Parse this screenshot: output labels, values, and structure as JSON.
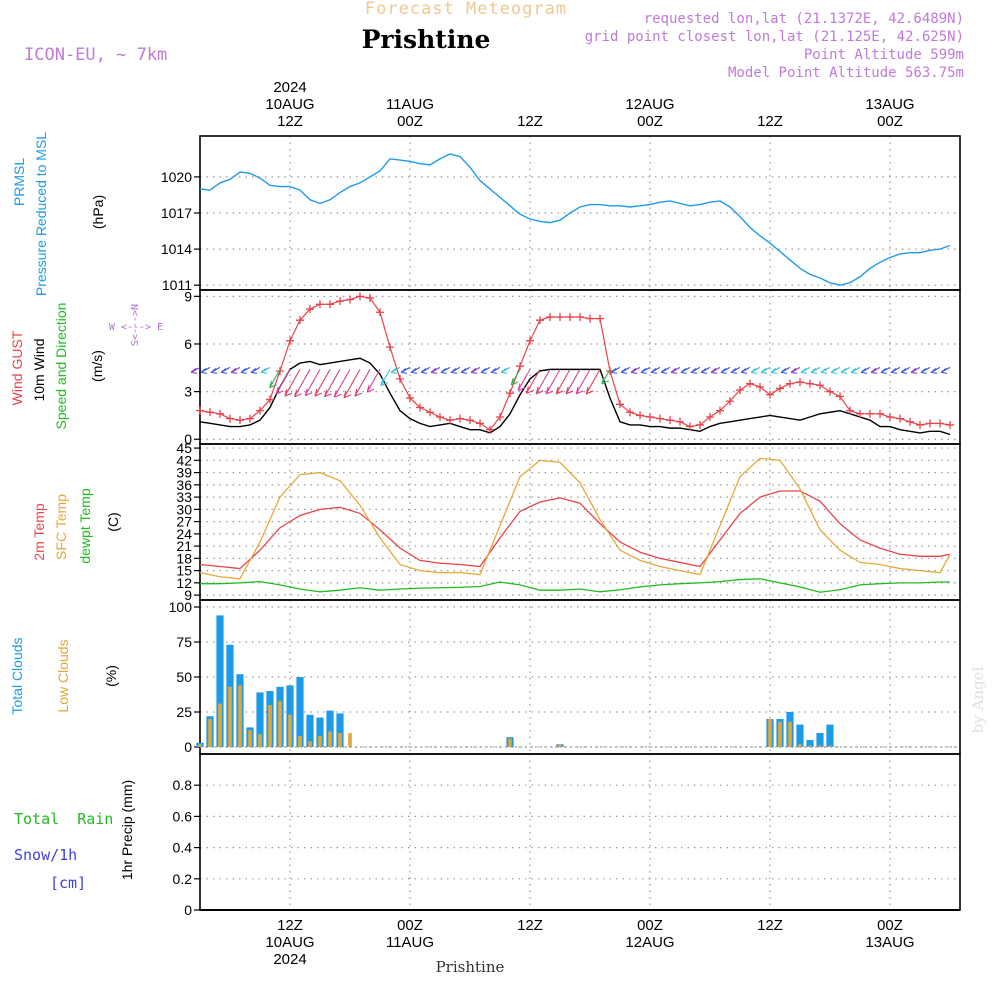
{
  "header": {
    "top_title": "Forecast Meteogram",
    "place": "Prishtine",
    "model": "ICON-EU, ~ 7km",
    "requested": "requested lon,lat (21.1372E, 42.6489N)",
    "grid_point": "grid point closest lon,lat (21.125E, 42.625N)",
    "point_alt": "Point Altitude 599m",
    "model_alt": "Model Point Altitude 563.75m",
    "footer_place": "Prishtine",
    "watermark": "by Angel"
  },
  "time_axis": {
    "ticks": [
      {
        "t": 12,
        "top": [
          "2024",
          "10AUG",
          "12Z"
        ],
        "bottom": [
          "12Z",
          "10AUG",
          "2024"
        ]
      },
      {
        "t": 24,
        "top": [
          "11AUG",
          "00Z"
        ],
        "bottom": [
          "00Z",
          "11AUG"
        ]
      },
      {
        "t": 36,
        "top": [
          "12Z"
        ],
        "bottom": [
          "12Z"
        ]
      },
      {
        "t": 48,
        "top": [
          "12AUG",
          "00Z"
        ],
        "bottom": [
          "00Z",
          "12AUG"
        ]
      },
      {
        "t": 60,
        "top": [
          "12Z"
        ],
        "bottom": [
          "12Z"
        ]
      },
      {
        "t": 72,
        "top": [
          "13AUG",
          "00Z"
        ],
        "bottom": [
          "00Z",
          "13AUG"
        ]
      }
    ]
  },
  "panel_labels": {
    "pressure": {
      "lines": [
        "PRMSL",
        "Pressure Reduced to MSL"
      ],
      "unit": "(hPa)"
    },
    "wind": {
      "gust": "Wind GUST",
      "wind10": "10m Wind",
      "speed_dir": "Speed and Direction",
      "unit": "(m/s)",
      "compass_ns": "S<--->N",
      "compass_we": "W <---> E"
    },
    "temp": {
      "t2m": "2m Temp",
      "sfc": "SFC Temp",
      "dewpt": "dewpt Temp",
      "unit": "(C)"
    },
    "clouds": {
      "total": "Total Clouds",
      "low": "Low Clouds",
      "unit": "(%)"
    },
    "precip": {
      "rain": "Total  Rain",
      "snow": "Snow/1h",
      "snow_unit": "[cm]",
      "axis": "1hr Precip (mm)"
    }
  },
  "colors": {
    "pressure": "#1e9be6",
    "gust": "#e8434b",
    "wind": "#000000",
    "t2m": "#e8434b",
    "sfc": "#e8a838",
    "dewpt": "#22bb22",
    "total_cloud": "#1e9be6",
    "low_cloud": "#e0a838",
    "header_purple": "#c07ad8",
    "model_purple": "#b070d0",
    "title_orange": "#f0c890"
  },
  "chart_data": [
    {
      "type": "line",
      "title": "PRMSL Pressure Reduced to MSL",
      "ylabel": "(hPa)",
      "ylim": [
        1010.6,
        1023.4
      ],
      "yticks": [
        1011,
        1014,
        1017,
        1020
      ],
      "xlim": [
        3,
        79
      ],
      "series": [
        {
          "name": "PRMSL",
          "x": [
            3,
            4,
            5,
            6,
            7,
            8,
            9,
            10,
            11,
            12,
            13,
            14,
            15,
            16,
            17,
            18,
            19,
            20,
            21,
            22,
            23,
            24,
            25,
            26,
            27,
            28,
            29,
            30,
            31,
            32,
            33,
            34,
            35,
            36,
            37,
            38,
            39,
            40,
            41,
            42,
            43,
            44,
            45,
            46,
            47,
            48,
            49,
            50,
            51,
            52,
            53,
            54,
            55,
            56,
            57,
            58,
            59,
            60,
            61,
            62,
            63,
            64,
            65,
            66,
            67,
            68,
            69,
            70,
            71,
            72,
            73,
            74,
            75,
            76,
            77,
            78
          ],
          "values": [
            1019.0,
            1018.9,
            1019.5,
            1019.8,
            1020.4,
            1020.3,
            1019.9,
            1019.3,
            1019.2,
            1019.2,
            1018.9,
            1018.1,
            1017.8,
            1018.1,
            1018.7,
            1019.2,
            1019.5,
            1020.0,
            1020.5,
            1021.5,
            1021.4,
            1021.3,
            1021.1,
            1021.0,
            1021.5,
            1021.9,
            1021.7,
            1020.8,
            1019.7,
            1019.0,
            1018.3,
            1017.6,
            1016.9,
            1016.5,
            1016.3,
            1016.2,
            1016.4,
            1017.0,
            1017.5,
            1017.7,
            1017.7,
            1017.6,
            1017.6,
            1017.5,
            1017.6,
            1017.7,
            1017.9,
            1018.0,
            1017.8,
            1017.6,
            1017.7,
            1017.9,
            1018.0,
            1017.5,
            1016.7,
            1015.8,
            1015.1,
            1014.5,
            1013.8,
            1013.1,
            1012.4,
            1011.9,
            1011.6,
            1011.2,
            1011.0,
            1011.2,
            1011.7,
            1012.4,
            1012.9,
            1013.3,
            1013.6,
            1013.7,
            1013.7,
            1013.9,
            1014.0,
            1014.3
          ]
        }
      ]
    },
    {
      "type": "line",
      "title": "Wind GUST / 10m Wind Speed and Direction",
      "ylabel": "(m/s)",
      "ylim": [
        -0.3,
        9.4
      ],
      "yticks": [
        0,
        3,
        6,
        9
      ],
      "xlim": [
        3,
        79
      ],
      "series": [
        {
          "name": "Wind GUST",
          "x": [
            3,
            4,
            5,
            6,
            7,
            8,
            9,
            10,
            11,
            12,
            13,
            14,
            15,
            16,
            17,
            18,
            19,
            20,
            21,
            22,
            23,
            24,
            25,
            26,
            27,
            28,
            29,
            30,
            31,
            32,
            33,
            34,
            35,
            36,
            37,
            38,
            39,
            40,
            41,
            42,
            43,
            44,
            45,
            46,
            47,
            48,
            49,
            50,
            51,
            52,
            53,
            54,
            55,
            56,
            57,
            58,
            59,
            60,
            61,
            62,
            63,
            64,
            65,
            66,
            67,
            68,
            69,
            70,
            71,
            72,
            73,
            74,
            75,
            76,
            77,
            78
          ],
          "values": [
            1.8,
            1.7,
            1.6,
            1.3,
            1.2,
            1.3,
            1.8,
            2.5,
            4.3,
            6.2,
            7.5,
            8.2,
            8.5,
            8.5,
            8.7,
            8.8,
            9.0,
            8.9,
            8.0,
            5.8,
            3.8,
            2.6,
            2.0,
            1.7,
            1.4,
            1.2,
            1.3,
            1.2,
            1.0,
            0.6,
            1.4,
            2.9,
            4.6,
            6.2,
            7.5,
            7.7,
            7.7,
            7.7,
            7.7,
            7.6,
            7.6,
            4.3,
            2.2,
            1.7,
            1.5,
            1.4,
            1.3,
            1.2,
            1.1,
            0.8,
            0.9,
            1.4,
            1.8,
            2.4,
            3.1,
            3.5,
            3.3,
            2.8,
            3.2,
            3.5,
            3.6,
            3.5,
            3.4,
            3.0,
            2.7,
            1.8,
            1.6,
            1.6,
            1.6,
            1.4,
            1.3,
            1.1,
            0.9,
            1.0,
            1.0,
            0.9
          ]
        },
        {
          "name": "10m Wind",
          "x": [
            3,
            4,
            5,
            6,
            7,
            8,
            9,
            10,
            11,
            12,
            13,
            14,
            15,
            16,
            17,
            18,
            19,
            20,
            21,
            22,
            23,
            24,
            25,
            26,
            27,
            28,
            29,
            30,
            31,
            32,
            33,
            34,
            35,
            36,
            37,
            38,
            39,
            40,
            41,
            42,
            43,
            44,
            45,
            46,
            47,
            48,
            49,
            50,
            51,
            52,
            53,
            54,
            55,
            56,
            57,
            58,
            59,
            60,
            61,
            62,
            63,
            64,
            65,
            66,
            67,
            68,
            69,
            70,
            71,
            72,
            73,
            74,
            75,
            76,
            77,
            78
          ],
          "values": [
            1.1,
            1.0,
            0.9,
            0.8,
            0.8,
            0.9,
            1.2,
            2.0,
            3.3,
            4.4,
            4.8,
            4.9,
            4.7,
            4.8,
            4.9,
            5.0,
            5.1,
            4.8,
            4.1,
            2.9,
            1.8,
            1.3,
            1.0,
            0.8,
            0.9,
            1.0,
            0.8,
            0.6,
            0.6,
            0.4,
            0.8,
            1.6,
            2.8,
            3.8,
            4.3,
            4.4,
            4.4,
            4.4,
            4.4,
            4.4,
            4.4,
            2.6,
            1.1,
            0.9,
            0.9,
            0.8,
            0.8,
            0.7,
            0.7,
            0.6,
            0.5,
            0.8,
            1.0,
            1.1,
            1.2,
            1.3,
            1.4,
            1.5,
            1.4,
            1.3,
            1.2,
            1.4,
            1.6,
            1.7,
            1.8,
            1.6,
            1.4,
            1.2,
            0.8,
            0.8,
            0.6,
            0.5,
            0.4,
            0.5,
            0.5,
            0.3
          ]
        }
      ]
    },
    {
      "type": "line",
      "title": "2m Temp / SFC Temp / dewpt Temp",
      "ylabel": "(C)",
      "ylim": [
        7.8,
        46.0
      ],
      "yticks": [
        9,
        12,
        15,
        18,
        21,
        24,
        27,
        30,
        33,
        36,
        39,
        42,
        45
      ],
      "xlim": [
        3,
        79
      ],
      "series": [
        {
          "name": "2m Temp",
          "x": [
            3,
            5,
            7,
            9,
            11,
            13,
            15,
            17,
            19,
            21,
            23,
            25,
            27,
            29,
            31,
            33,
            35,
            37,
            39,
            41,
            43,
            45,
            47,
            49,
            51,
            53,
            55,
            57,
            59,
            61,
            63,
            65,
            67,
            69,
            71,
            73,
            75,
            77,
            78
          ],
          "values": [
            16.5,
            16.0,
            15.5,
            20.0,
            25.5,
            28.5,
            30.0,
            30.5,
            29.0,
            25.0,
            20.5,
            17.5,
            16.8,
            16.5,
            16.0,
            23.0,
            29.5,
            31.8,
            32.8,
            31.5,
            26.5,
            22.0,
            19.5,
            18.0,
            17.0,
            16.0,
            22.5,
            29.0,
            33.0,
            34.5,
            34.5,
            32.0,
            26.5,
            22.5,
            20.5,
            19.0,
            18.5,
            18.5,
            19.0
          ]
        },
        {
          "name": "SFC Temp",
          "x": [
            3,
            5,
            7,
            9,
            11,
            13,
            15,
            17,
            19,
            21,
            23,
            25,
            27,
            29,
            31,
            33,
            35,
            37,
            39,
            41,
            43,
            45,
            47,
            49,
            51,
            53,
            55,
            57,
            59,
            61,
            63,
            65,
            67,
            69,
            71,
            73,
            75,
            77,
            78
          ],
          "values": [
            14.5,
            13.5,
            13.0,
            22.0,
            33.0,
            38.5,
            39.0,
            37.0,
            31.0,
            23.0,
            16.5,
            15.0,
            14.5,
            14.5,
            14.0,
            26.0,
            38.0,
            42.0,
            41.5,
            36.5,
            27.5,
            20.0,
            17.5,
            16.0,
            15.0,
            14.0,
            26.0,
            38.0,
            42.5,
            42.0,
            35.0,
            25.0,
            20.0,
            17.0,
            16.5,
            15.5,
            15.0,
            14.5,
            19.0
          ]
        },
        {
          "name": "dewpt Temp",
          "x": [
            3,
            5,
            7,
            9,
            11,
            13,
            15,
            17,
            19,
            21,
            23,
            25,
            27,
            29,
            31,
            33,
            35,
            37,
            39,
            41,
            43,
            45,
            47,
            49,
            51,
            53,
            55,
            57,
            59,
            61,
            63,
            65,
            67,
            69,
            71,
            73,
            75,
            77,
            78
          ],
          "values": [
            11.8,
            11.8,
            12.0,
            12.3,
            11.5,
            10.5,
            9.8,
            10.2,
            10.8,
            10.2,
            10.5,
            10.7,
            10.8,
            10.9,
            11.1,
            12.2,
            11.5,
            10.2,
            10.2,
            10.5,
            9.8,
            10.3,
            11.0,
            11.5,
            11.8,
            12.0,
            12.3,
            12.8,
            13.0,
            12.0,
            11.0,
            9.7,
            10.3,
            11.5,
            11.8,
            12.0,
            12.0,
            12.2,
            12.2
          ]
        }
      ]
    },
    {
      "type": "bar",
      "title": "Total Clouds / Low Clouds",
      "ylabel": "(%)",
      "ylim": [
        -5,
        105
      ],
      "yticks": [
        0,
        25,
        50,
        75,
        100
      ],
      "xlim": [
        3,
        79
      ],
      "series": [
        {
          "name": "Total Clouds",
          "x": [
            3,
            4,
            5,
            6,
            7,
            8,
            9,
            10,
            11,
            12,
            13,
            14,
            15,
            16,
            17,
            34,
            39,
            60,
            61,
            62,
            63,
            64,
            65,
            66
          ],
          "values": [
            3,
            22,
            94,
            73,
            52,
            14,
            39,
            40,
            43,
            44,
            50,
            23,
            21,
            26,
            24,
            7,
            2,
            20,
            20,
            25,
            16,
            5,
            10,
            16
          ]
        },
        {
          "name": "Low Clouds",
          "x": [
            3,
            4,
            5,
            6,
            7,
            8,
            9,
            10,
            11,
            12,
            13,
            14,
            15,
            16,
            17,
            18,
            34,
            39,
            60,
            61,
            62,
            63,
            64,
            65,
            66
          ],
          "values": [
            2,
            20,
            31,
            43,
            44,
            12,
            9,
            30,
            33,
            23,
            8,
            4,
            8,
            11,
            10,
            10,
            6,
            2,
            20,
            18,
            18,
            2,
            1,
            1,
            1
          ]
        }
      ]
    },
    {
      "type": "bar",
      "title": "1hr Precip (mm)",
      "ylabel": "1hr Precip (mm)",
      "ylim": [
        0,
        1.0
      ],
      "yticks": [
        0,
        0.2,
        0.4,
        0.6,
        0.8
      ],
      "xlim": [
        3,
        79
      ],
      "series": [
        {
          "name": "Total Rain",
          "x": [],
          "values": []
        }
      ]
    }
  ]
}
